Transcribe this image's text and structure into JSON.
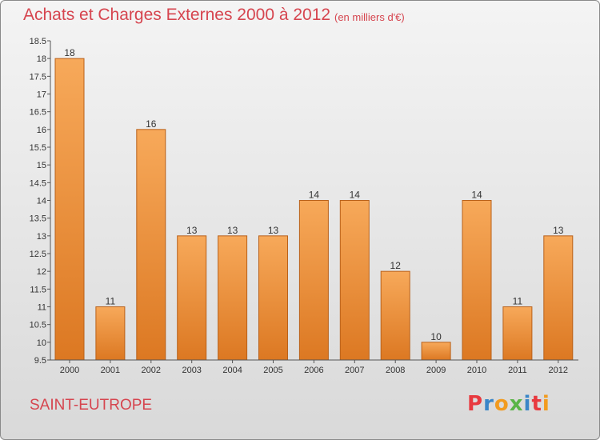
{
  "header": {
    "title": "Achats et Charges Externes 2000 à 2012",
    "subtitle": "(en milliers d'€)"
  },
  "footer": {
    "commune": "SAINT-EUTROPE",
    "logo_text": "Proxiti",
    "logo_colors": [
      "#e8393f",
      "#3a86c8",
      "#f29b1f",
      "#5ab547",
      "#3a86c8",
      "#e8393f",
      "#f29b1f"
    ]
  },
  "colors": {
    "bar_top": "#f7a95a",
    "bar_bottom": "#dc7822",
    "bar_edge": "#b9611a",
    "text": "#333333",
    "accent": "#d6454f"
  },
  "chart_data": {
    "type": "bar",
    "categories": [
      "2000",
      "2001",
      "2002",
      "2003",
      "2004",
      "2005",
      "2006",
      "2007",
      "2008",
      "2009",
      "2010",
      "2011",
      "2012"
    ],
    "values": [
      18,
      11,
      16,
      13,
      13,
      13,
      14,
      14,
      12,
      10,
      14,
      11,
      13
    ],
    "labels": [
      "18",
      "11",
      "16",
      "13",
      "13",
      "13",
      "14",
      "14",
      "12",
      "10",
      "14",
      "11",
      "13"
    ],
    "yticks": [
      "9.5",
      "10",
      "10.5",
      "11",
      "11.5",
      "12",
      "12.5",
      "13",
      "13.5",
      "14",
      "14.5",
      "15",
      "15.5",
      "16",
      "16.5",
      "17",
      "17.5",
      "18",
      "18.5"
    ],
    "ylim": [
      9.5,
      18.5
    ],
    "title": "Achats et Charges Externes 2000 à 2012",
    "xlabel": "",
    "ylabel": "",
    "grid": false,
    "legend": "none"
  }
}
